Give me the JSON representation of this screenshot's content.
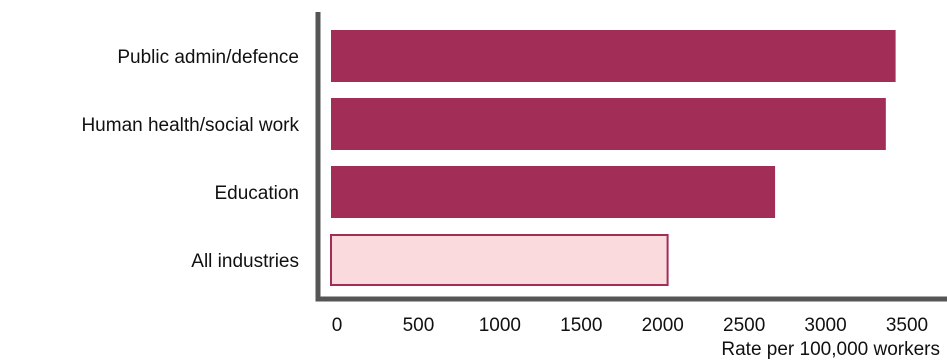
{
  "chart_data": {
    "type": "bar",
    "orientation": "horizontal",
    "categories": [
      "Public admin/defence",
      "Human health/social work",
      "Education",
      "All industries"
    ],
    "values": [
      3430,
      3370,
      2690,
      2030
    ],
    "xlabel": "Rate per 100,000 workers",
    "ylabel": "",
    "xlim": [
      0,
      3500
    ],
    "xticks": [
      0,
      500,
      1000,
      1500,
      2000,
      2500,
      3000,
      3500
    ],
    "grid": false,
    "legend": "none",
    "colors": {
      "bar": "#a22d57",
      "highlight_fill": "#fadadd",
      "highlight_stroke": "#a22d57",
      "axis": "#555555"
    },
    "highlight_category": "All industries"
  }
}
